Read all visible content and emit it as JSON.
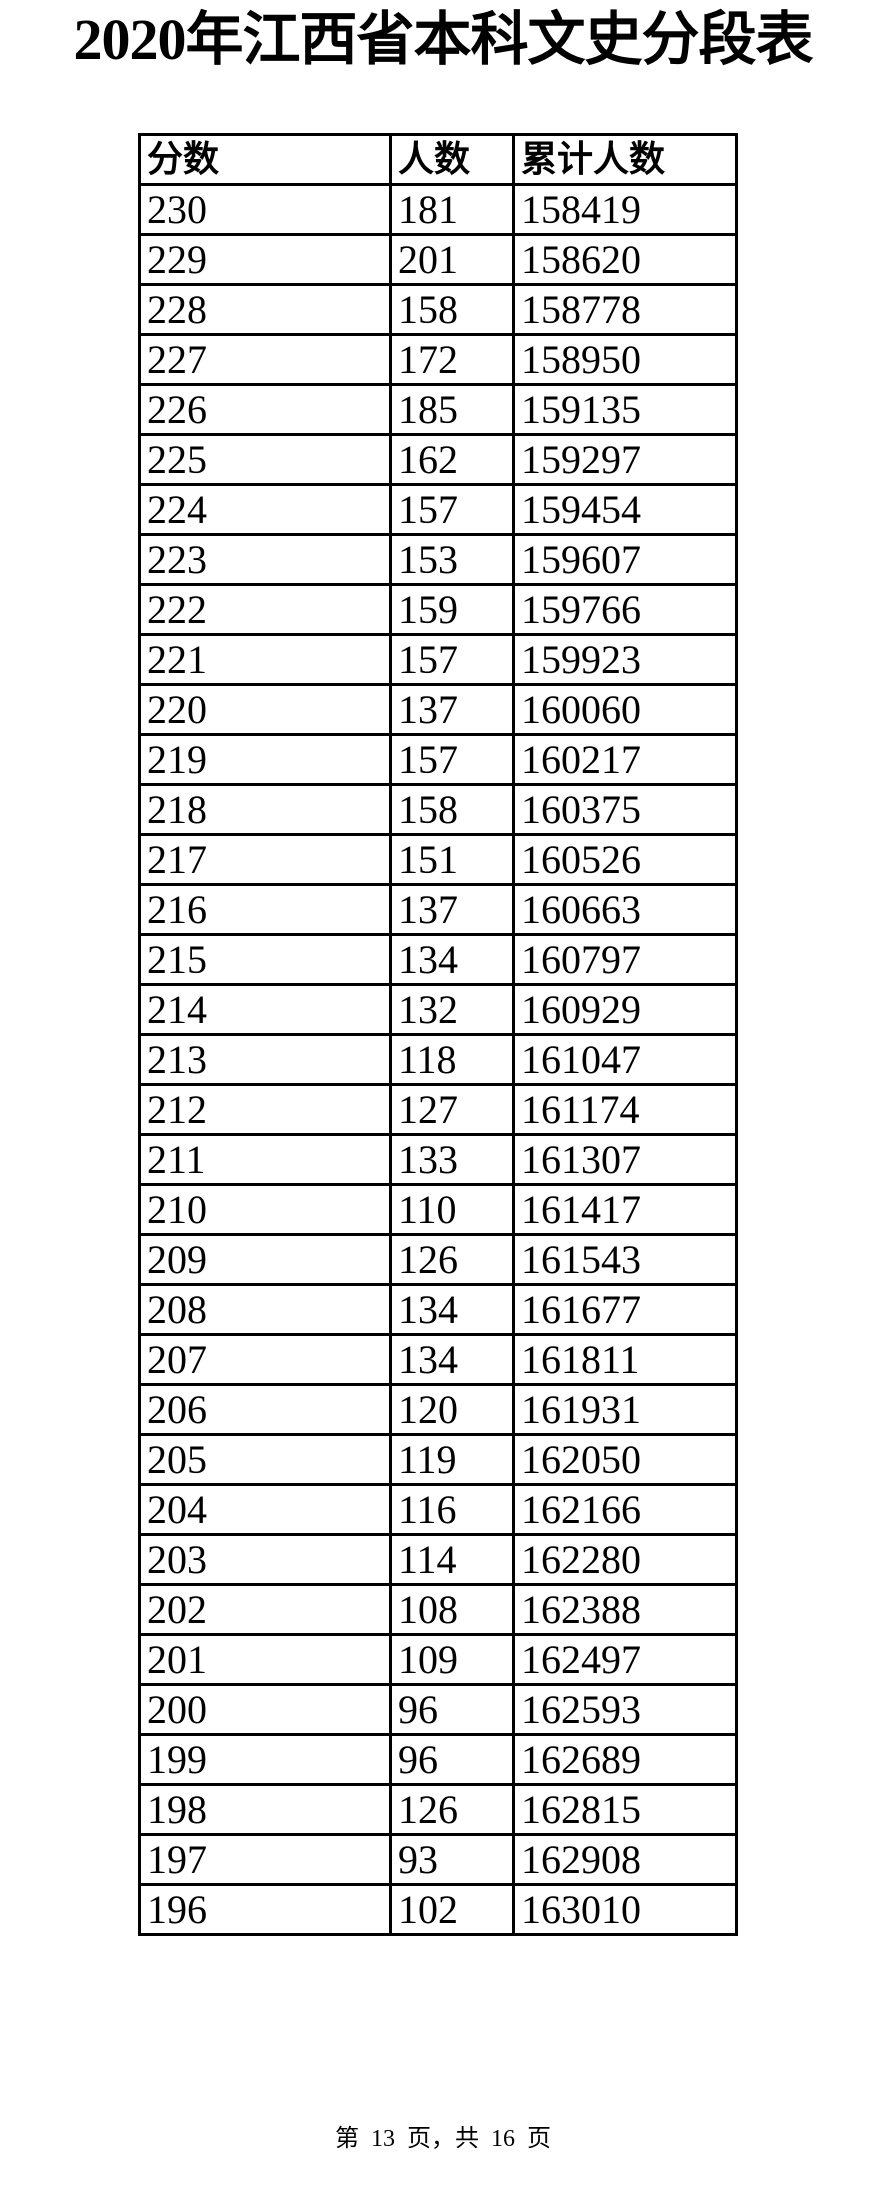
{
  "title": "2020年江西省本科文史分段表",
  "table": {
    "headers": [
      "分数",
      "人数",
      "累计人数"
    ],
    "rows": [
      [
        "230",
        "181",
        "158419"
      ],
      [
        "229",
        "201",
        "158620"
      ],
      [
        "228",
        "158",
        "158778"
      ],
      [
        "227",
        "172",
        "158950"
      ],
      [
        "226",
        "185",
        "159135"
      ],
      [
        "225",
        "162",
        "159297"
      ],
      [
        "224",
        "157",
        "159454"
      ],
      [
        "223",
        "153",
        "159607"
      ],
      [
        "222",
        "159",
        "159766"
      ],
      [
        "221",
        "157",
        "159923"
      ],
      [
        "220",
        "137",
        "160060"
      ],
      [
        "219",
        "157",
        "160217"
      ],
      [
        "218",
        "158",
        "160375"
      ],
      [
        "217",
        "151",
        "160526"
      ],
      [
        "216",
        "137",
        "160663"
      ],
      [
        "215",
        "134",
        "160797"
      ],
      [
        "214",
        "132",
        "160929"
      ],
      [
        "213",
        "118",
        "161047"
      ],
      [
        "212",
        "127",
        "161174"
      ],
      [
        "211",
        "133",
        "161307"
      ],
      [
        "210",
        "110",
        "161417"
      ],
      [
        "209",
        "126",
        "161543"
      ],
      [
        "208",
        "134",
        "161677"
      ],
      [
        "207",
        "134",
        "161811"
      ],
      [
        "206",
        "120",
        "161931"
      ],
      [
        "205",
        "119",
        "162050"
      ],
      [
        "204",
        "116",
        "162166"
      ],
      [
        "203",
        "114",
        "162280"
      ],
      [
        "202",
        "108",
        "162388"
      ],
      [
        "201",
        "109",
        "162497"
      ],
      [
        "200",
        "96",
        "162593"
      ],
      [
        "199",
        "96",
        "162689"
      ],
      [
        "198",
        "126",
        "162815"
      ],
      [
        "197",
        "93",
        "162908"
      ],
      [
        "196",
        "102",
        "163010"
      ]
    ]
  },
  "footer": "第 13 页，共 16 页"
}
